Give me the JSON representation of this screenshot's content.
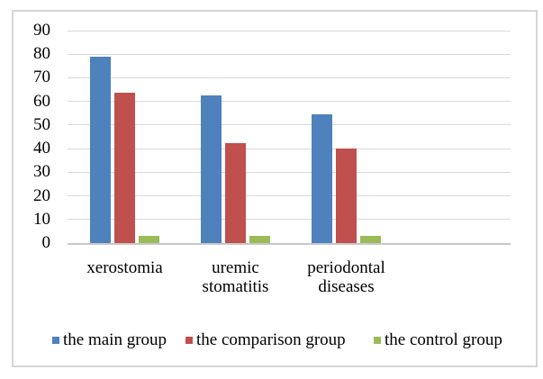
{
  "chart_data": {
    "type": "bar",
    "title": "",
    "xlabel": "",
    "ylabel": "",
    "categories": [
      "xerostomia",
      "uremic stomatitis",
      "periodontal diseases"
    ],
    "series": [
      {
        "name": "the main group",
        "color": "#4F81BD",
        "values": [
          79,
          62.5,
          54.5
        ]
      },
      {
        "name": "the comparison group",
        "color": "#C0504D",
        "values": [
          63.5,
          42.5,
          40
        ]
      },
      {
        "name": "the control group",
        "color": "#9BBB59",
        "values": [
          3,
          3,
          3
        ]
      }
    ],
    "ylim": [
      0,
      90
    ],
    "yticks": [
      0,
      10,
      20,
      30,
      40,
      50,
      60,
      70,
      80,
      90
    ],
    "grid": true,
    "legend_position": "bottom"
  },
  "style_colors": {
    "gridline": "#d9d9d9",
    "axis_line": "#c8c8c8",
    "frame_border": "#d5d5d5",
    "text": "#000000",
    "background": "#ffffff"
  }
}
